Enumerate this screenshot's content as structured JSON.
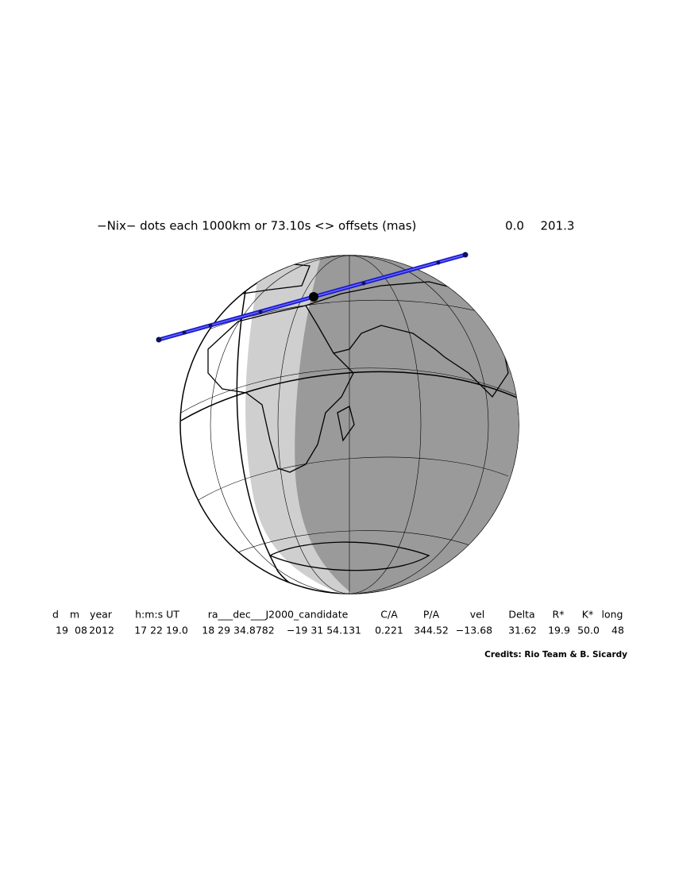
{
  "header": {
    "title": "−Nix− dots each 1000km or 73.10s <> offsets (mas)",
    "offset_ra": "0.0",
    "offset_dec": "201.3"
  },
  "table": {
    "columns": [
      "d",
      "m",
      "year",
      "h:m:s UT",
      "ra___dec___J2000_candidate",
      "C/A",
      "P/A",
      "vel",
      "Delta",
      "R*",
      "K*",
      "long"
    ],
    "row": [
      "19",
      "08",
      "2012",
      "17 22 19.0",
      "18 29 34.8782",
      "−19 31 54.131",
      "0.221",
      "344.52",
      "−13.68",
      "31.62",
      "19.9",
      "50.0",
      "48"
    ]
  },
  "credits": "Credits: Rio Team & B. Sicardy"
}
